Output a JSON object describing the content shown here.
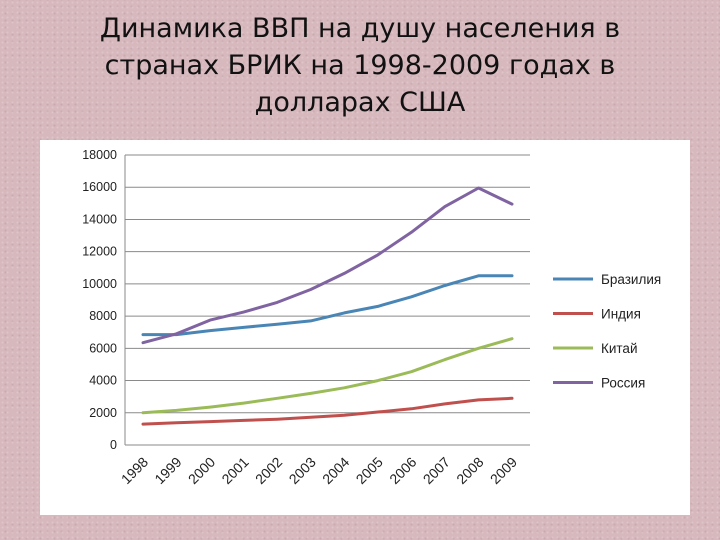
{
  "page": {
    "title": "Динамика ВВП на душу населения в странах БРИК на 1998-2009 годах в долларах США"
  },
  "chart_data": {
    "type": "line",
    "title": "",
    "xlabel": "",
    "ylabel": "",
    "x": [
      "1998",
      "1999",
      "2000",
      "2001",
      "2002",
      "2003",
      "2004",
      "2005",
      "2006",
      "2007",
      "2008",
      "2009"
    ],
    "ylim": [
      0,
      18000
    ],
    "yticks": [
      "0",
      "2000",
      "4000",
      "6000",
      "8000",
      "10000",
      "12000",
      "14000",
      "16000",
      "18000"
    ],
    "grid": "horizontal",
    "legend_position": "right",
    "series": [
      {
        "name": "Бразилия",
        "color": "#4a86b5",
        "values": [
          6850,
          6850,
          7100,
          7300,
          7500,
          7700,
          8200,
          8600,
          9200,
          9900,
          10500,
          10500
        ]
      },
      {
        "name": "Индия",
        "color": "#c0504d",
        "values": [
          1300,
          1380,
          1450,
          1530,
          1600,
          1720,
          1850,
          2050,
          2250,
          2550,
          2800,
          2900
        ]
      },
      {
        "name": "Китай",
        "color": "#9bbb59",
        "values": [
          2000,
          2150,
          2350,
          2600,
          2900,
          3200,
          3550,
          4000,
          4550,
          5300,
          6000,
          6600
        ]
      },
      {
        "name": "Россия",
        "color": "#8064a2",
        "values": [
          6350,
          6900,
          7750,
          8250,
          8850,
          9650,
          10650,
          11800,
          13200,
          14800,
          15950,
          14950
        ]
      }
    ]
  }
}
